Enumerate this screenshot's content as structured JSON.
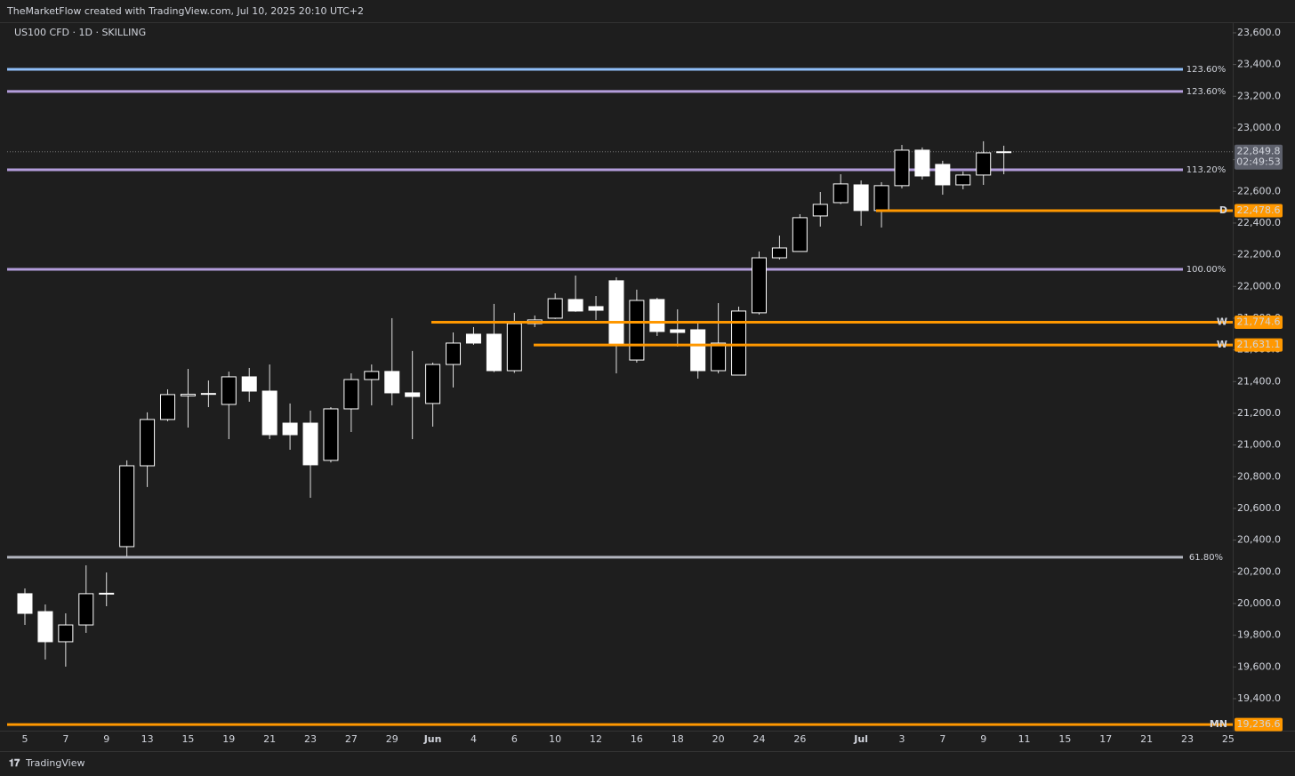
{
  "header": "TheMarketFlow created with TradingView.com, Jul 10, 2025 20:10 UTC+2",
  "footer": "TradingView",
  "chart_data": {
    "type": "candlestick",
    "title": "US100 CFD · 1D · SKILLING",
    "up_color": "#000000",
    "down_color": "#ffffff",
    "wick_color": "#e0e0e0",
    "categories": [
      "5",
      null,
      "7",
      null,
      "9",
      null,
      "13",
      null,
      "15",
      null,
      "19",
      null,
      "21",
      null,
      "23",
      null,
      "27",
      null,
      "29",
      null,
      "Jun",
      null,
      "4",
      null,
      "6",
      null,
      "10",
      null,
      "12",
      null,
      "16",
      null,
      "18",
      null,
      "20",
      null,
      "24",
      null,
      "26",
      null,
      null,
      "Jul",
      null,
      "3",
      null,
      "7",
      null,
      "9",
      null,
      "11",
      null,
      "15",
      null,
      "17",
      null,
      "21",
      null,
      "23",
      null,
      "25"
    ],
    "open": [
      20062,
      19949,
      19759,
      19865,
      20060,
      20359,
      20869,
      21161,
      21310,
      21320,
      21256,
      21430,
      21340,
      21138,
      21138,
      20903,
      21228,
      21413,
      21464,
      21329,
      21262,
      21508,
      21699,
      21699,
      21469,
      21766,
      21800,
      21918,
      21873,
      22036,
      21536,
      21918,
      21727,
      21727,
      21469,
      21441,
      21834,
      22181,
      22221,
      22445,
      22529,
      22641,
      22479,
      22636,
      22860,
      22770,
      22641,
      22703,
      22845,
      null,
      null,
      null,
      null,
      null,
      null,
      null,
      null,
      null,
      null,
      null
    ],
    "high": [
      20095,
      19994,
      19938,
      20241,
      20196,
      20903,
      21206,
      21351,
      21480,
      21407,
      21463,
      21486,
      21508,
      21262,
      21217,
      21239,
      21452,
      21508,
      21800,
      21593,
      21520,
      21710,
      21744,
      21890,
      21834,
      21817,
      21957,
      22069,
      21940,
      22058,
      21980,
      21929,
      21856,
      21772,
      21895,
      21873,
      22221,
      22321,
      22456,
      22596,
      22708,
      22669,
      22658,
      22893,
      22877,
      22793,
      22725,
      22916,
      22888,
      null,
      null,
      null,
      null,
      null,
      null,
      null,
      null,
      null,
      null,
      null
    ],
    "low": [
      19865,
      19647,
      19602,
      19815,
      19983,
      20297,
      20735,
      21150,
      21110,
      21239,
      21037,
      21273,
      21037,
      20970,
      20667,
      20890,
      21082,
      21250,
      21250,
      21037,
      21116,
      21363,
      21632,
      21460,
      21455,
      21744,
      21795,
      21840,
      21789,
      21452,
      21520,
      21688,
      21621,
      21419,
      21452,
      21441,
      21823,
      22170,
      22221,
      22378,
      22520,
      22383,
      22372,
      22619,
      22675,
      22579,
      22613,
      22641,
      22708,
      null,
      null,
      null,
      null,
      null,
      null,
      null,
      null,
      null,
      null,
      null
    ],
    "close": [
      19938,
      19759,
      19865,
      20062,
      20065,
      20869,
      21161,
      21318,
      21320,
      21325,
      21430,
      21340,
      21065,
      21065,
      20875,
      21228,
      21413,
      21464,
      21329,
      21306,
      21508,
      21643,
      21643,
      21469,
      21766,
      21789,
      21923,
      21845,
      21850,
      21632,
      21912,
      21716,
      21710,
      21469,
      21643,
      21845,
      22181,
      22243,
      22434,
      22518,
      22647,
      22479,
      22636,
      22860,
      22697,
      22641,
      22703,
      22843,
      22849.8,
      null,
      null,
      null,
      null,
      null,
      null,
      null,
      null,
      null,
      null,
      null
    ],
    "ylim": [
      19198,
      23667
    ],
    "yticks": [
      {
        "value": 19400,
        "label": "19,400.0"
      },
      {
        "value": 19600,
        "label": "19,600.0"
      },
      {
        "value": 19800,
        "label": "19,800.0"
      },
      {
        "value": 20000,
        "label": "20,000.0"
      },
      {
        "value": 20200,
        "label": "20,200.0"
      },
      {
        "value": 20400,
        "label": "20,400.0"
      },
      {
        "value": 20600,
        "label": "20,600.0"
      },
      {
        "value": 20800,
        "label": "20,800.0"
      },
      {
        "value": 21000,
        "label": "21,000.0"
      },
      {
        "value": 21200,
        "label": "21,200.0"
      },
      {
        "value": 21400,
        "label": "21,400.0"
      },
      {
        "value": 21600,
        "label": "21,600.0"
      },
      {
        "value": 21800,
        "label": "21,800.0"
      },
      {
        "value": 22000,
        "label": "22,000.0"
      },
      {
        "value": 22200,
        "label": "22,200.0"
      },
      {
        "value": 22400,
        "label": "22,400.0"
      },
      {
        "value": 22600,
        "label": "22,600.0"
      },
      {
        "value": 22800,
        "label": "22,800.0"
      },
      {
        "value": 23000,
        "label": "23,000.0"
      },
      {
        "value": 23200,
        "label": "23,200.0"
      },
      {
        "value": 23400,
        "label": "23,400.0"
      },
      {
        "value": 23600,
        "label": "23,600.0"
      }
    ],
    "levels": [
      {
        "label": "123.60%",
        "value": 23370,
        "color": "#90bff9"
      },
      {
        "label": "123.60%",
        "value": 23230,
        "color": "#b39ddb"
      },
      {
        "label": "113.20%",
        "value": 22736,
        "color": "#b39ddb"
      },
      {
        "label": "100.00%",
        "value": 22108,
        "color": "#b39ddb"
      },
      {
        "label": "61.80%",
        "value": 20292,
        "color": "#b2b5be"
      }
    ],
    "price_lines": [
      {
        "tag": "D",
        "value": 22478.6,
        "value_label": "22,478.6",
        "color": "#ff9800"
      },
      {
        "tag": "W",
        "value": 21774.6,
        "value_label": "21,774.6",
        "color": "#ff9800"
      },
      {
        "tag": "W",
        "value": 21631.1,
        "value_label": "21,631.1",
        "color": "#ff9800"
      },
      {
        "tag": "MN",
        "value": 19236.6,
        "value_label": "19,236.6",
        "color": "#ff9800"
      }
    ],
    "last": {
      "value": 22849.8,
      "label": "22,849.8",
      "countdown": "02:49:53"
    }
  }
}
